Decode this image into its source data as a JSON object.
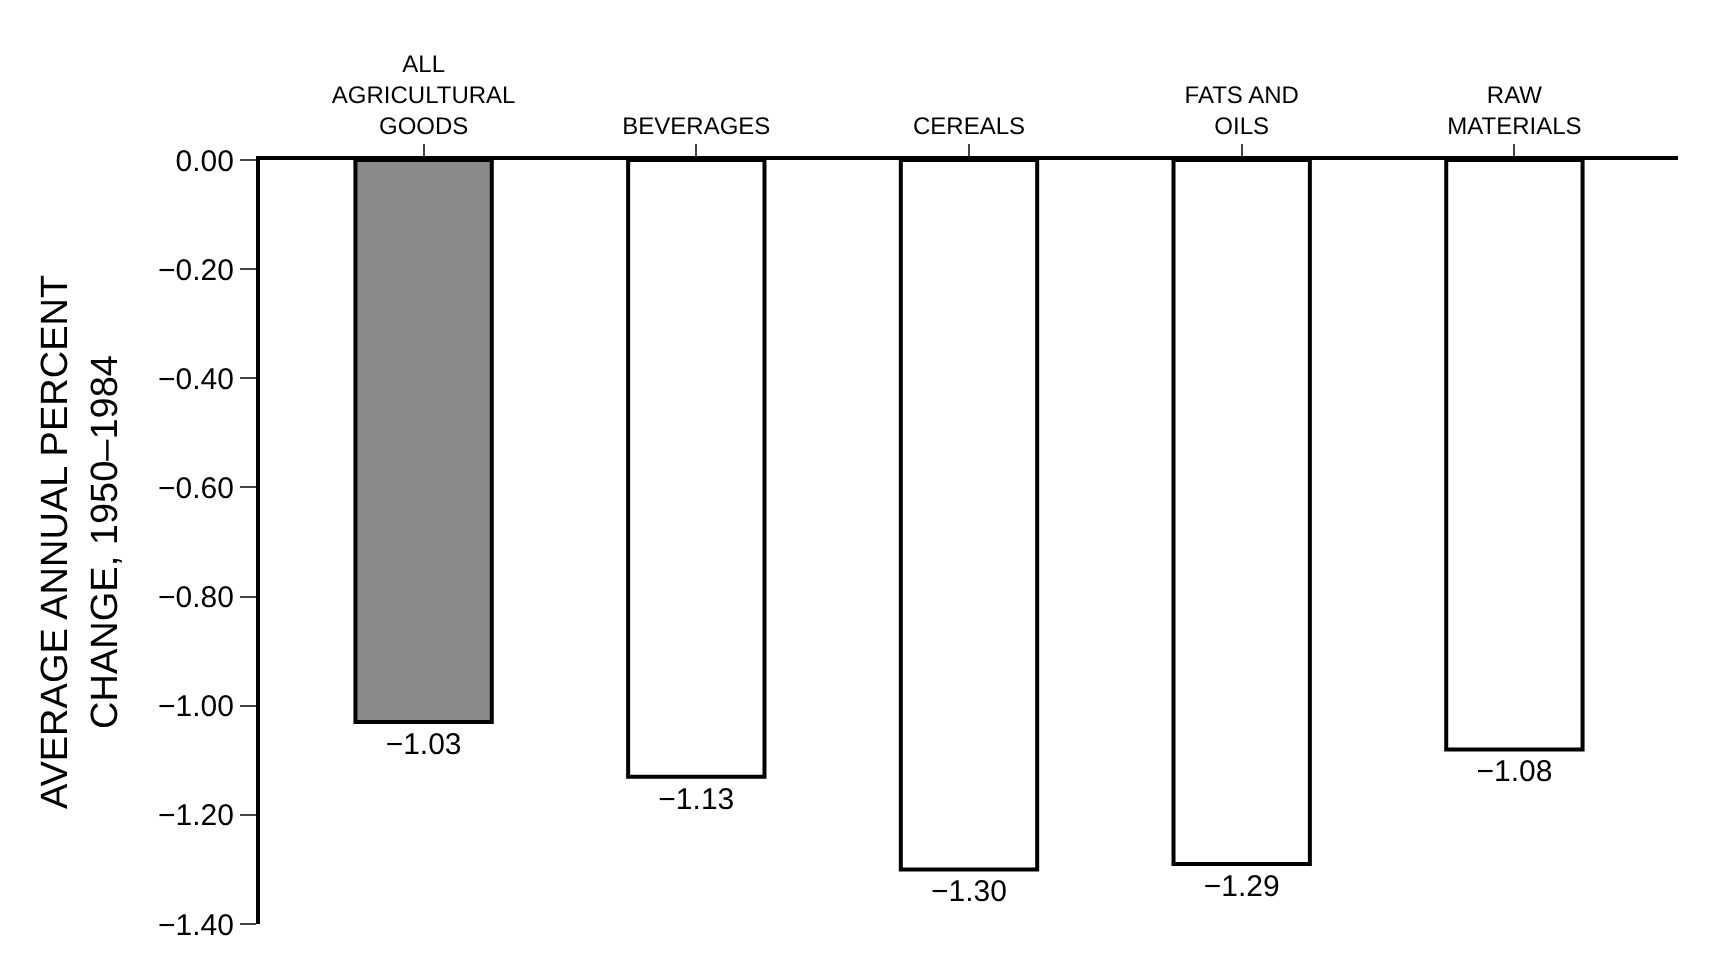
{
  "chart_data": {
    "type": "bar",
    "ylabel": "AVERAGE ANNUAL PERCENT\nCHANGE, 1950–1984",
    "categories": [
      "ALL\nAGRICULTURAL\nGOODS",
      "BEVERAGES",
      "CEREALS",
      "FATS AND\nOILS",
      "RAW\nMATERIALS"
    ],
    "values": [
      -1.03,
      -1.13,
      -1.3,
      -1.29,
      -1.08
    ],
    "value_labels": [
      "−1.03",
      "−1.13",
      "−1.30",
      "−1.29",
      "−1.08"
    ],
    "colors": [
      "#8a8a8a",
      "#ffffff",
      "#ffffff",
      "#ffffff",
      "#ffffff"
    ],
    "ylim": [
      -1.4,
      0.0
    ],
    "yticks": [
      {
        "value": 0,
        "label": "0.00"
      },
      {
        "value": -0.2,
        "label": "−0.20"
      },
      {
        "value": -0.4,
        "label": "−0.40"
      },
      {
        "value": -0.6,
        "label": "−0.60"
      },
      {
        "value": -0.8,
        "label": "−0.80"
      },
      {
        "value": -1.0,
        "label": "−1.00"
      },
      {
        "value": -1.2,
        "label": "−1.20"
      },
      {
        "value": -1.4,
        "label": "−1.40"
      }
    ],
    "grid": false,
    "legend": false
  }
}
